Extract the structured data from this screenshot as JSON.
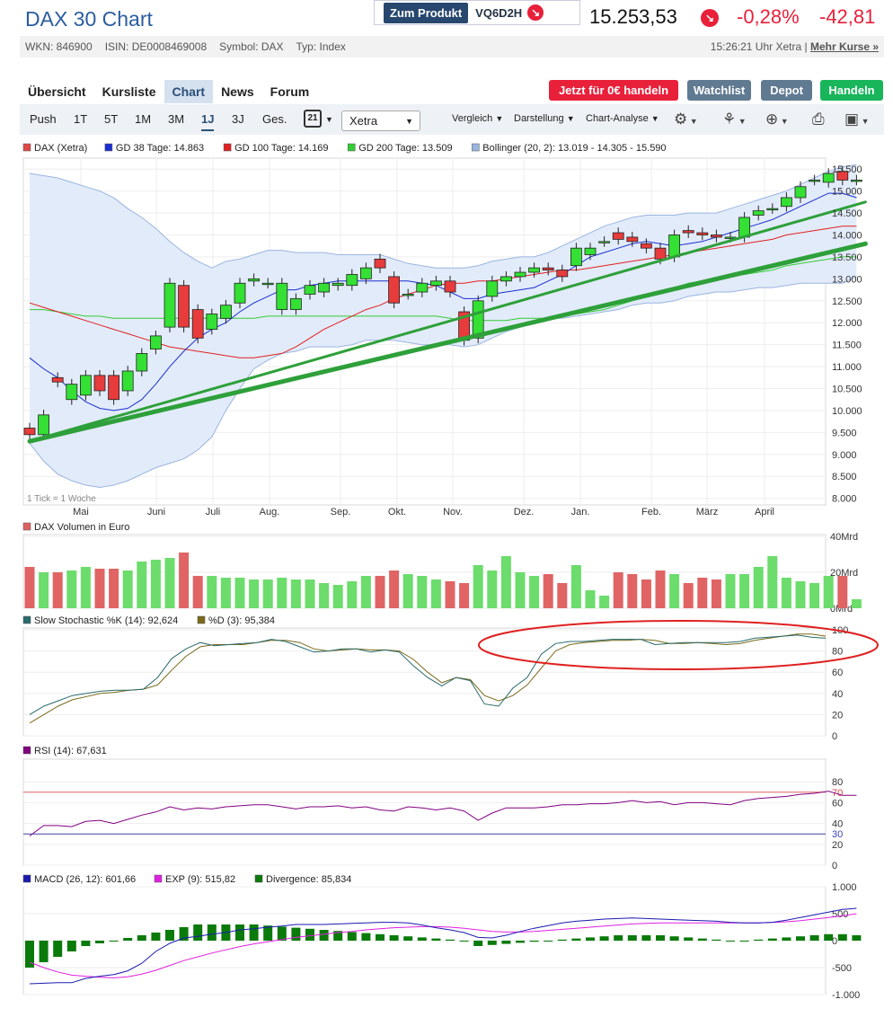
{
  "header": {
    "title": "DAX 30 Chart",
    "product_button": "Zum Produkt",
    "product_code": "VQ6D2H",
    "price": "15.253,53",
    "change_pct": "-0,28%",
    "change_abs": "-42,81",
    "down_arrow": "↘"
  },
  "meta": {
    "wkn": "WKN: 846900",
    "isin": "ISIN: DE0008469008",
    "symbol": "Symbol: DAX",
    "type": "Typ: Index",
    "time": "15:26:21 Uhr Xetra |",
    "more": "Mehr Kurse »"
  },
  "tabs": [
    "Übersicht",
    "Kursliste",
    "Chart",
    "News",
    "Forum"
  ],
  "actions": {
    "trade": "Jetzt für 0€ handeln",
    "watchlist": "Watchlist",
    "depot": "Depot",
    "handeln": "Handeln"
  },
  "toolbar": {
    "ranges": [
      "Push",
      "1T",
      "5T",
      "1M",
      "3M",
      "1J",
      "3J",
      "Ges."
    ],
    "calendar": "21",
    "exchange": "Xetra",
    "menus": [
      "Vergleich",
      "Darstellung",
      "Chart-Analyse"
    ],
    "icons": [
      "gear-icon",
      "nodes-icon",
      "zoom-icon",
      "printer-icon",
      "save-icon"
    ]
  },
  "chart_data": {
    "type": "candlestick",
    "legend": [
      {
        "name": "DAX (Xetra)",
        "color": "#e04848"
      },
      {
        "name": "GD 38 Tage: 14.863",
        "color": "#1a2fd0"
      },
      {
        "name": "GD 100 Tage: 14.169",
        "color": "#e02020"
      },
      {
        "name": "GD 200 Tage: 13.509",
        "color": "#33cc33"
      },
      {
        "name": "Bollinger (20, 2): 13.019 - 14.305 - 15.590",
        "color": "#9ab5e0"
      }
    ],
    "tick_note": "1 Tick = 1 Woche",
    "x_labels": [
      "Mai",
      "Juni",
      "Juli",
      "Aug.",
      "Sep.",
      "Okt.",
      "Nov.",
      "Dez.",
      "Jan.",
      "Feb.",
      "März",
      "April"
    ],
    "y_labels": [
      "15.500",
      "15.000",
      "14.500",
      "14.000",
      "13.500",
      "13.000",
      "12.500",
      "12.000",
      "11.500",
      "11.000",
      "10.500",
      "10.000",
      "9.500",
      "9.000",
      "8.500",
      "8.000"
    ],
    "ylim": [
      7850,
      15750
    ],
    "candles": [
      [
        9600,
        9450
      ],
      [
        9450,
        9900
      ],
      [
        10750,
        10650
      ],
      [
        10250,
        10600
      ],
      [
        10350,
        10800
      ],
      [
        10800,
        10450
      ],
      [
        10800,
        10250
      ],
      [
        10450,
        10900
      ],
      [
        10900,
        11300
      ],
      [
        11400,
        11700
      ],
      [
        11900,
        12900
      ],
      [
        12850,
        11900
      ],
      [
        12300,
        11650
      ],
      [
        11850,
        12200
      ],
      [
        12100,
        12400
      ],
      [
        12450,
        12900
      ],
      [
        12950,
        13000
      ],
      [
        12900,
        12900
      ],
      [
        12300,
        12900
      ],
      [
        12300,
        12550
      ],
      [
        12650,
        12850
      ],
      [
        12700,
        12900
      ],
      [
        12850,
        12900
      ],
      [
        12850,
        13100
      ],
      [
        13000,
        13250
      ],
      [
        13450,
        13250
      ],
      [
        13050,
        12450
      ],
      [
        12650,
        12650
      ],
      [
        12700,
        12900
      ],
      [
        12850,
        12950
      ],
      [
        12950,
        12700
      ],
      [
        12250,
        11600
      ],
      [
        11650,
        12500
      ],
      [
        12600,
        12950
      ],
      [
        12950,
        13050
      ],
      [
        13050,
        13150
      ],
      [
        13150,
        13250
      ],
      [
        13250,
        13200
      ],
      [
        13200,
        13050
      ],
      [
        13300,
        13700
      ],
      [
        13550,
        13700
      ],
      [
        13850,
        13850
      ],
      [
        14050,
        13900
      ],
      [
        13950,
        13850
      ],
      [
        13800,
        13700
      ],
      [
        13700,
        13450
      ],
      [
        13500,
        14000
      ],
      [
        14100,
        14050
      ],
      [
        14050,
        14000
      ],
      [
        14000,
        13950
      ],
      [
        13950,
        13950
      ],
      [
        13950,
        14400
      ],
      [
        14450,
        14550
      ],
      [
        14600,
        14600
      ],
      [
        14650,
        14850
      ],
      [
        14850,
        15100
      ],
      [
        15250,
        15250
      ],
      [
        15200,
        15400
      ],
      [
        15450,
        15250
      ],
      [
        15250,
        15250
      ]
    ],
    "gd38": [
      11200,
      10950,
      10750,
      10450,
      10200,
      10050,
      10000,
      10050,
      10250,
      10600,
      11000,
      11350,
      11650,
      11850,
      12000,
      12250,
      12450,
      12600,
      12750,
      12750,
      12850,
      12900,
      12950,
      12950,
      12950,
      12950,
      12950,
      12950,
      12900,
      12850,
      12700,
      12550,
      12550,
      12650,
      12700,
      12750,
      12800,
      12950,
      13100,
      13300,
      13500,
      13600,
      13700,
      13800,
      13850,
      13800,
      13750,
      13800,
      13850,
      13950,
      14050,
      14150,
      14250,
      14350,
      14500,
      14650,
      14800,
      14950,
      14950,
      14850
    ],
    "gd100": [
      12450,
      12350,
      12250,
      12150,
      12050,
      11950,
      11850,
      11750,
      11650,
      11550,
      11450,
      11400,
      11350,
      11300,
      11250,
      11200,
      11200,
      11250,
      11300,
      11450,
      11650,
      11850,
      12000,
      12150,
      12300,
      12400,
      12550,
      12650,
      12750,
      12850,
      12900,
      12900,
      12950,
      12950,
      13000,
      13050,
      13100,
      13150,
      13200,
      13200,
      13250,
      13300,
      13350,
      13400,
      13450,
      13500,
      13550,
      13600,
      13650,
      13700,
      13750,
      13800,
      13850,
      13900,
      14000,
      14050,
      14100,
      14150,
      14200,
      14200
    ],
    "gd200": [
      12300,
      12300,
      12250,
      12200,
      12150,
      12150,
      12100,
      12100,
      12100,
      12100,
      12100,
      12100,
      12100,
      12100,
      12100,
      12100,
      12100,
      12150,
      12150,
      12150,
      12150,
      12150,
      12150,
      12150,
      12150,
      12150,
      12150,
      12150,
      12150,
      12150,
      12100,
      12050,
      12050,
      12050,
      12050,
      12100,
      12100,
      12100,
      12150,
      12200,
      12250,
      12300,
      12400,
      12500,
      12600,
      12700,
      12800,
      12900,
      12950,
      13000,
      13050,
      13100,
      13150,
      13200,
      13300,
      13350,
      13400,
      13450,
      13500,
      13500
    ],
    "boll_upper": [
      15400,
      15350,
      15300,
      15200,
      15100,
      15000,
      14850,
      14600,
      14400,
      14150,
      13850,
      13600,
      13400,
      13250,
      13400,
      13450,
      13550,
      13650,
      13650,
      13600,
      13600,
      13600,
      13550,
      13550,
      13550,
      13550,
      13450,
      13350,
      13300,
      13250,
      13250,
      13250,
      13300,
      13400,
      13450,
      13500,
      13500,
      13600,
      13750,
      13900,
      14050,
      14200,
      14300,
      14400,
      14450,
      14450,
      14450,
      14500,
      14500,
      14500,
      14600,
      14700,
      14800,
      14900,
      15000,
      15150,
      15300,
      15450,
      15550,
      15600
    ],
    "boll_lower": [
      9250,
      8850,
      8550,
      8400,
      8300,
      8250,
      8300,
      8400,
      8550,
      8700,
      8800,
      8900,
      9100,
      9400,
      10000,
      10500,
      10950,
      11150,
      11300,
      11350,
      11450,
      11450,
      11450,
      11500,
      11600,
      11600,
      11600,
      11550,
      11500,
      11500,
      11500,
      11450,
      11500,
      11650,
      11800,
      11900,
      12000,
      12100,
      12100,
      12150,
      12200,
      12250,
      12300,
      12400,
      12450,
      12450,
      12500,
      12600,
      12650,
      12700,
      12700,
      12750,
      12800,
      12800,
      12850,
      12900,
      12900,
      12900,
      12900,
      13050
    ],
    "trendlines": [
      {
        "from": [
          0,
          9300
        ],
        "to": [
          59,
          14750
        ]
      },
      {
        "from": [
          0,
          9300
        ],
        "to": [
          59,
          13800
        ]
      }
    ],
    "volume": {
      "title": "DAX Volumen in Euro",
      "y_labels": [
        "40Mrd",
        "20Mrd",
        "0Mrd"
      ],
      "max": 40,
      "values": [
        23,
        20,
        20,
        21,
        23,
        22,
        22,
        21,
        26,
        27,
        28,
        31,
        18,
        18,
        17,
        17,
        16,
        16,
        17,
        16,
        16,
        14,
        13,
        15,
        18,
        18,
        21,
        19,
        18,
        16,
        15,
        14,
        24,
        21,
        29,
        20,
        18,
        19,
        14,
        24,
        10,
        7,
        20,
        19,
        16,
        21,
        19,
        14,
        17,
        16,
        19,
        19,
        23,
        29,
        17,
        15,
        14,
        18,
        18,
        5
      ]
    },
    "stochastic": {
      "title_k": "Slow Stochastic %K (14): 92,624",
      "title_d": "%D (3): 95,384",
      "color_k": "#2a6b6b",
      "color_d": "#7a6a1a",
      "y_labels": [
        "100",
        "80",
        "60",
        "40",
        "20",
        "0"
      ],
      "k": [
        20,
        28,
        33,
        38,
        40,
        42,
        43,
        43,
        44,
        55,
        73,
        82,
        88,
        85,
        86,
        87,
        88,
        91,
        89,
        84,
        79,
        80,
        82,
        82,
        79,
        81,
        79,
        66,
        55,
        47,
        55,
        52,
        30,
        28,
        45,
        55,
        77,
        87,
        89,
        89,
        90,
        91,
        91,
        91,
        86,
        87,
        88,
        88,
        88,
        88,
        89,
        92,
        93,
        94,
        95,
        93,
        92
      ],
      "d": [
        12,
        20,
        28,
        34,
        37,
        40,
        41,
        43,
        44,
        48,
        62,
        75,
        84,
        86,
        86,
        86,
        88,
        90,
        90,
        88,
        82,
        80,
        81,
        82,
        81,
        81,
        80,
        72,
        60,
        50,
        55,
        53,
        38,
        33,
        38,
        48,
        64,
        80,
        86,
        88,
        89,
        90,
        90,
        91,
        90,
        87,
        87,
        88,
        87,
        86,
        87,
        90,
        92,
        94,
        96,
        96,
        94
      ]
    },
    "rsi": {
      "title": "RSI (14): 67,631",
      "color": "#800080",
      "y_labels": [
        "80",
        "70",
        "60",
        "40",
        "30",
        "20",
        "0"
      ],
      "levels": [
        70,
        30
      ],
      "values": [
        28,
        38,
        38,
        37,
        42,
        43,
        40,
        44,
        48,
        51,
        56,
        53,
        55,
        54,
        56,
        57,
        58,
        58,
        56,
        54,
        56,
        56,
        57,
        55,
        56,
        53,
        52,
        56,
        55,
        53,
        55,
        52,
        43,
        50,
        55,
        55,
        55,
        56,
        58,
        58,
        59,
        59,
        60,
        62,
        60,
        61,
        58,
        60,
        60,
        59,
        58,
        62,
        64,
        65,
        66,
        68,
        69,
        71,
        67,
        67
      ]
    },
    "macd": {
      "title_macd": "MACD (26, 12): 601,66",
      "title_exp": "EXP (9): 515,82",
      "title_div": "Divergence: 85,834",
      "color_macd": "#1a1ab0",
      "color_exp": "#e020e0",
      "color_div": "#0a7a0a",
      "y_labels": [
        "1.000",
        "500",
        "0",
        "-500",
        "-1.000"
      ],
      "ylim": [
        -1000,
        1000
      ],
      "macd": [
        -800,
        -790,
        -780,
        -780,
        -700,
        -660,
        -630,
        -560,
        -420,
        -200,
        -50,
        50,
        80,
        120,
        150,
        200,
        220,
        250,
        270,
        300,
        300,
        300,
        310,
        320,
        330,
        340,
        340,
        330,
        290,
        240,
        200,
        150,
        60,
        50,
        100,
        170,
        230,
        280,
        330,
        360,
        380,
        400,
        410,
        420,
        410,
        400,
        390,
        380,
        370,
        360,
        340,
        330,
        330,
        340,
        380,
        430,
        480,
        530,
        580,
        600
      ],
      "exp": [
        -400,
        -500,
        -580,
        -640,
        -660,
        -680,
        -690,
        -670,
        -620,
        -550,
        -460,
        -370,
        -300,
        -230,
        -170,
        -110,
        -60,
        -20,
        20,
        60,
        90,
        120,
        150,
        170,
        200,
        220,
        240,
        250,
        260,
        260,
        250,
        230,
        200,
        170,
        160,
        160,
        170,
        190,
        210,
        230,
        250,
        270,
        290,
        310,
        320,
        330,
        330,
        330,
        330,
        330,
        330,
        330,
        330,
        340,
        350,
        370,
        400,
        430,
        460,
        500
      ],
      "div": [
        -500,
        -400,
        -300,
        -200,
        -100,
        -50,
        0,
        50,
        100,
        150,
        200,
        250,
        300,
        300,
        300,
        300,
        300,
        280,
        260,
        240,
        220,
        200,
        180,
        160,
        140,
        120,
        100,
        80,
        60,
        40,
        20,
        0,
        -100,
        -80,
        -60,
        -40,
        -20,
        0,
        20,
        40,
        60,
        80,
        100,
        100,
        100,
        100,
        80,
        60,
        40,
        20,
        0,
        0,
        20,
        40,
        60,
        80,
        100,
        120,
        120,
        100
      ]
    }
  }
}
